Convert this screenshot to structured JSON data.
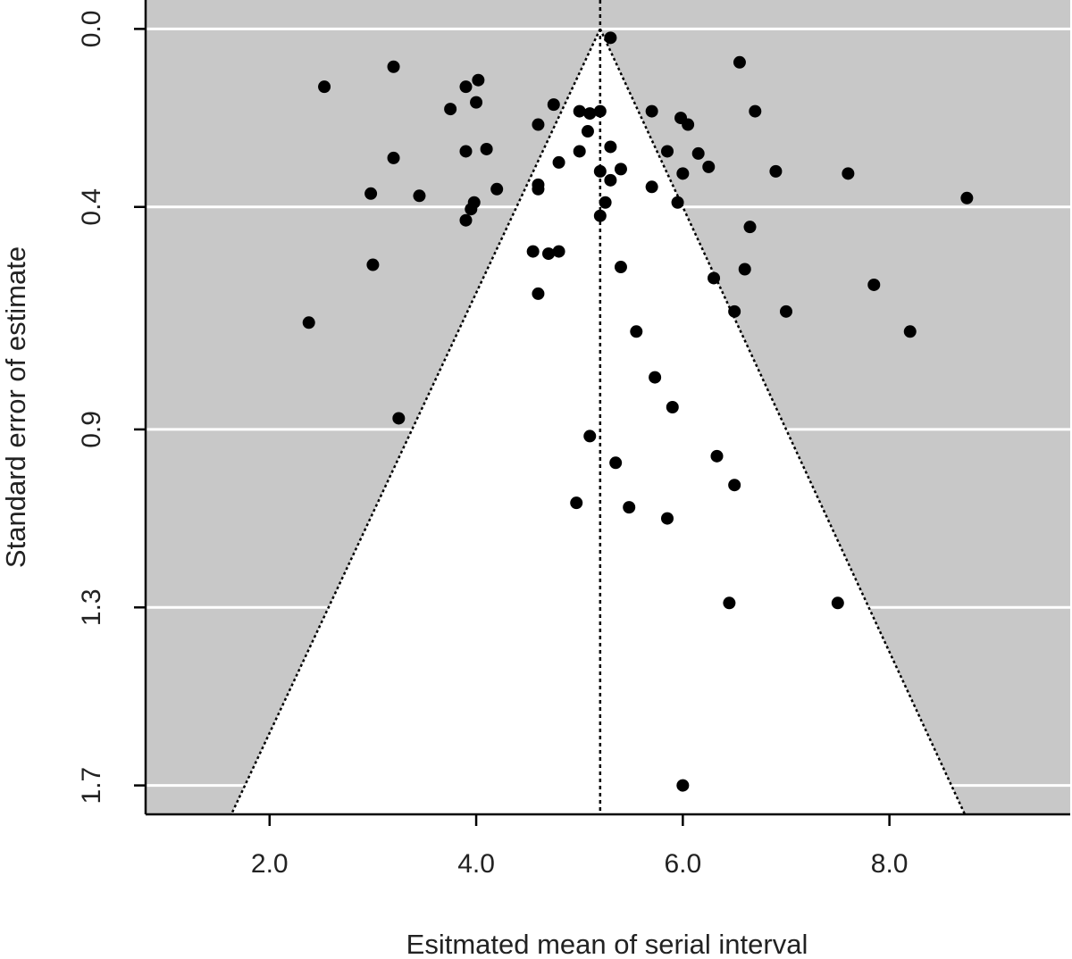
{
  "chart_data": {
    "type": "scatter",
    "subtype": "funnel-plot",
    "xlabel": "Esitmated mean of serial interval",
    "ylabel": "Standard error of estimate",
    "xlim": [
      0.8,
      9.75
    ],
    "ylim": [
      1.765,
      -0.065
    ],
    "y_inverted": true,
    "x_ticks": [
      2.0,
      4.0,
      6.0,
      8.0
    ],
    "x_tick_labels": [
      "2.0",
      "4.0",
      "6.0",
      "8.0"
    ],
    "y_ticks": [
      0.0,
      0.4,
      0.9,
      1.3,
      1.7
    ],
    "y_tick_labels": [
      "0.0",
      "0.4",
      "0.9",
      "1.3",
      "1.7"
    ],
    "grid": true,
    "legend": "none",
    "pooled_estimate": 5.2,
    "funnel": {
      "apex": [
        5.2,
        0.0
      ],
      "base_left": [
        1.63,
        1.765
      ],
      "base_right": [
        8.73,
        1.765
      ]
    },
    "colors": {
      "panel_background": "#c8c8c8",
      "funnel_fill": "#ffffff",
      "gridline": "#ffffff",
      "points": "#000000",
      "reference_lines": "#000000"
    },
    "series": [
      {
        "points": [
          [
            5.3,
            0.02
          ],
          [
            3.2,
            0.085
          ],
          [
            6.55,
            0.075
          ],
          [
            2.53,
            0.13
          ],
          [
            3.9,
            0.13
          ],
          [
            4.02,
            0.115
          ],
          [
            3.75,
            0.18
          ],
          [
            4.0,
            0.165
          ],
          [
            4.75,
            0.17
          ],
          [
            5.0,
            0.185
          ],
          [
            5.1,
            0.19
          ],
          [
            5.2,
            0.185
          ],
          [
            5.7,
            0.185
          ],
          [
            6.7,
            0.185
          ],
          [
            5.98,
            0.2
          ],
          [
            6.05,
            0.215
          ],
          [
            4.6,
            0.215
          ],
          [
            5.08,
            0.23
          ],
          [
            5.3,
            0.265
          ],
          [
            5.0,
            0.275
          ],
          [
            3.9,
            0.275
          ],
          [
            4.1,
            0.27
          ],
          [
            5.85,
            0.275
          ],
          [
            6.15,
            0.28
          ],
          [
            3.2,
            0.29
          ],
          [
            4.8,
            0.3
          ],
          [
            6.25,
            0.31
          ],
          [
            5.4,
            0.315
          ],
          [
            5.2,
            0.32
          ],
          [
            6.9,
            0.32
          ],
          [
            7.6,
            0.325
          ],
          [
            6.0,
            0.325
          ],
          [
            5.3,
            0.34
          ],
          [
            4.6,
            0.35
          ],
          [
            4.6,
            0.36
          ],
          [
            5.7,
            0.355
          ],
          [
            4.2,
            0.36
          ],
          [
            2.98,
            0.37
          ],
          [
            3.45,
            0.375
          ],
          [
            8.75,
            0.38
          ],
          [
            3.98,
            0.39
          ],
          [
            5.95,
            0.39
          ],
          [
            5.25,
            0.39
          ],
          [
            3.95,
            0.405
          ],
          [
            5.2,
            0.42
          ],
          [
            3.9,
            0.43
          ],
          [
            6.65,
            0.445
          ],
          [
            4.55,
            0.5
          ],
          [
            4.8,
            0.5
          ],
          [
            4.7,
            0.505
          ],
          [
            3.0,
            0.53
          ],
          [
            5.4,
            0.535
          ],
          [
            6.6,
            0.54
          ],
          [
            6.3,
            0.56
          ],
          [
            7.85,
            0.575
          ],
          [
            4.6,
            0.595
          ],
          [
            6.5,
            0.635
          ],
          [
            7.0,
            0.635
          ],
          [
            2.38,
            0.66
          ],
          [
            5.55,
            0.68
          ],
          [
            8.2,
            0.68
          ],
          [
            5.73,
            0.783
          ],
          [
            5.9,
            0.85
          ],
          [
            3.25,
            0.875
          ],
          [
            5.1,
            0.915
          ],
          [
            6.33,
            0.96
          ],
          [
            5.35,
            0.975
          ],
          [
            6.5,
            1.025
          ],
          [
            4.97,
            1.065
          ],
          [
            5.48,
            1.075
          ],
          [
            5.85,
            1.1
          ],
          [
            6.45,
            1.29
          ],
          [
            7.5,
            1.29
          ],
          [
            6.0,
            1.7
          ]
        ]
      }
    ]
  }
}
